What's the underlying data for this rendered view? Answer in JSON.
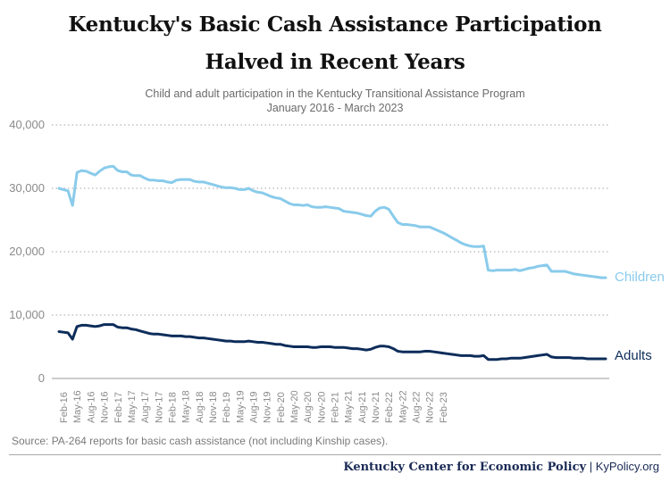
{
  "title_line1": "Kentucky's Basic Cash Assistance Participation",
  "title_line2": "Halved in Recent Years",
  "subtitle_line1": "Child and adult participation in the Kentucky Transitional Assistance Program",
  "subtitle_line2": "January 2016 - March 2023",
  "source": "Source: PA-264 reports for basic cash assistance (not including Kinship cases).",
  "footer": {
    "org": "Kentucky Center for Economic Policy",
    "separator": "|",
    "site": "KyPolicy.org"
  },
  "colors": {
    "children": "#89cbeb",
    "adults": "#0d2d5a",
    "grid": "#b5b5b5",
    "axis_text": "#8a8a8a"
  },
  "chart_data": {
    "type": "line",
    "ylim": [
      0,
      40000
    ],
    "yticks": [
      0,
      10000,
      20000,
      30000,
      40000
    ],
    "ytick_labels": [
      "0",
      "10,000",
      "20,000",
      "30,000",
      "40,000"
    ],
    "grid": "horizontal dotted",
    "xtick_labels": [
      "Feb-16",
      "May-16",
      "Aug-16",
      "Nov-16",
      "Feb-17",
      "May-17",
      "Aug-17",
      "Nov-17",
      "Feb-18",
      "May-18",
      "Aug-18",
      "Nov-18",
      "Feb-19",
      "May-19",
      "Aug-19",
      "Nov-19",
      "Feb-20",
      "May-20",
      "Aug-20",
      "Nov-20",
      "Feb-21",
      "May-21",
      "Aug-21",
      "Nov-21",
      "Feb-22",
      "May-22",
      "Aug-22",
      "Nov-22",
      "Feb-23"
    ],
    "x_start": "Jan-16",
    "x_end": "Mar-23",
    "series": [
      {
        "name": "Children",
        "values": [
          30000,
          29800,
          29600,
          27300,
          32500,
          32800,
          32700,
          32400,
          32100,
          32700,
          33200,
          33400,
          33500,
          32800,
          32600,
          32600,
          32100,
          32000,
          32000,
          31600,
          31300,
          31300,
          31200,
          31200,
          31000,
          30900,
          31300,
          31400,
          31400,
          31400,
          31100,
          31000,
          31000,
          30800,
          30600,
          30400,
          30200,
          30100,
          30100,
          30000,
          29800,
          29800,
          30000,
          29600,
          29400,
          29300,
          29000,
          28700,
          28500,
          28400,
          28000,
          27600,
          27400,
          27400,
          27300,
          27400,
          27100,
          27000,
          27000,
          27100,
          27000,
          26900,
          26800,
          26400,
          26300,
          26200,
          26100,
          25900,
          25700,
          25600,
          26400,
          26900,
          27000,
          26700,
          25600,
          24600,
          24300,
          24300,
          24200,
          24100,
          23900,
          23900,
          23900,
          23600,
          23300,
          23000,
          22600,
          22200,
          21800,
          21400,
          21100,
          20900,
          20800,
          20800,
          20900,
          17100,
          17000,
          17100,
          17100,
          17100,
          17100,
          17200,
          17000,
          17200,
          17400,
          17500,
          17700,
          17800,
          17900,
          16900,
          16900,
          16900,
          16900,
          16700,
          16500,
          16400,
          16300,
          16200,
          16100,
          16000,
          15900,
          15900
        ]
      },
      {
        "name": "Adults",
        "values": [
          7400,
          7300,
          7200,
          6200,
          8200,
          8400,
          8400,
          8300,
          8200,
          8300,
          8500,
          8500,
          8500,
          8100,
          8000,
          8000,
          7800,
          7700,
          7500,
          7300,
          7100,
          7000,
          7000,
          6900,
          6800,
          6700,
          6700,
          6700,
          6600,
          6600,
          6500,
          6400,
          6400,
          6300,
          6200,
          6100,
          6000,
          5900,
          5900,
          5800,
          5800,
          5800,
          5900,
          5800,
          5700,
          5700,
          5600,
          5500,
          5400,
          5400,
          5200,
          5100,
          5000,
          5000,
          5000,
          5000,
          4900,
          4900,
          5000,
          5000,
          5000,
          4900,
          4900,
          4900,
          4800,
          4700,
          4700,
          4600,
          4500,
          4600,
          4900,
          5100,
          5100,
          5000,
          4700,
          4300,
          4200,
          4200,
          4200,
          4200,
          4200,
          4300,
          4300,
          4200,
          4100,
          4000,
          3900,
          3800,
          3700,
          3600,
          3600,
          3600,
          3500,
          3500,
          3600,
          3000,
          3000,
          3000,
          3100,
          3100,
          3200,
          3200,
          3200,
          3300,
          3400,
          3500,
          3600,
          3700,
          3800,
          3400,
          3300,
          3300,
          3300,
          3300,
          3200,
          3200,
          3200,
          3100,
          3100,
          3100,
          3100,
          3100
        ]
      }
    ]
  }
}
